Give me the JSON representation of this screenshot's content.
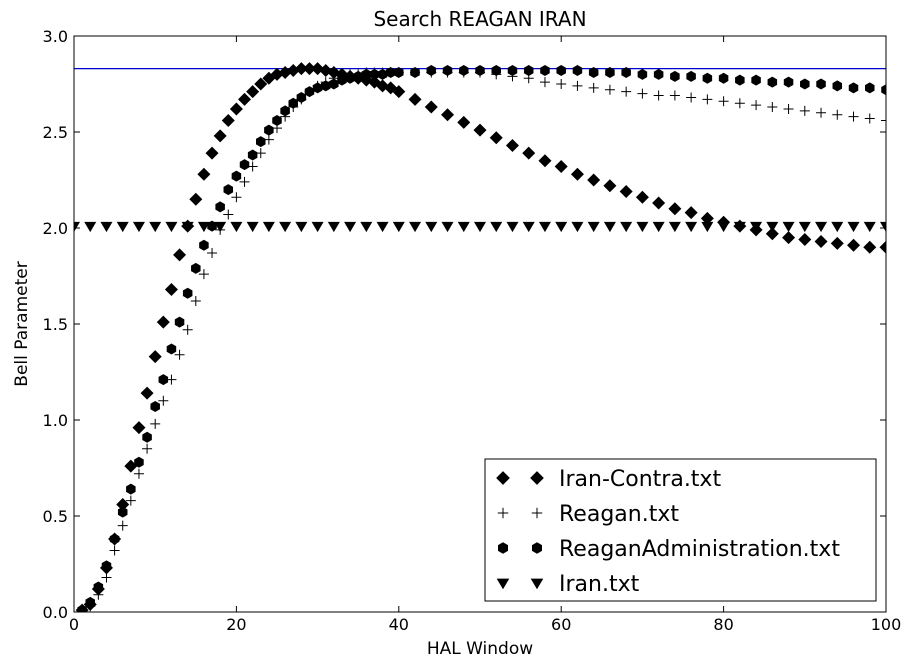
{
  "chart_data": {
    "type": "scatter",
    "title": "Search REAGAN IRAN",
    "xlabel": "HAL Window",
    "ylabel": "Bell Parameter",
    "xlim": [
      0,
      100
    ],
    "ylim": [
      0,
      3.0
    ],
    "xticks": [
      "0",
      "20",
      "40",
      "60",
      "80",
      "100"
    ],
    "yticks": [
      "0.0",
      "0.5",
      "1.0",
      "1.5",
      "2.0",
      "2.5",
      "3.0"
    ],
    "grid": false,
    "legend_position": "lower-right",
    "reference_line": {
      "y": 2.83,
      "color": "#0000cc"
    },
    "series": [
      {
        "name": "Iran-Contra.txt",
        "marker": "diamond",
        "x": [
          1,
          2,
          3,
          4,
          5,
          6,
          7,
          8,
          9,
          10,
          11,
          12,
          13,
          14,
          15,
          16,
          17,
          18,
          19,
          20,
          21,
          22,
          23,
          24,
          25,
          26,
          27,
          28,
          29,
          30,
          31,
          32,
          33,
          34,
          35,
          36,
          37,
          38,
          39,
          40,
          42,
          44,
          46,
          48,
          50,
          52,
          54,
          56,
          58,
          60,
          62,
          64,
          66,
          68,
          70,
          72,
          74,
          76,
          78,
          80,
          82,
          84,
          86,
          88,
          90,
          92,
          94,
          96,
          98,
          100
        ],
        "y": [
          0.01,
          0.04,
          0.12,
          0.23,
          0.38,
          0.56,
          0.76,
          0.96,
          1.14,
          1.33,
          1.51,
          1.68,
          1.86,
          2.01,
          2.15,
          2.28,
          2.39,
          2.48,
          2.56,
          2.62,
          2.67,
          2.71,
          2.75,
          2.78,
          2.8,
          2.81,
          2.82,
          2.83,
          2.83,
          2.83,
          2.82,
          2.81,
          2.8,
          2.79,
          2.78,
          2.77,
          2.76,
          2.74,
          2.73,
          2.71,
          2.67,
          2.63,
          2.59,
          2.55,
          2.51,
          2.47,
          2.43,
          2.39,
          2.35,
          2.32,
          2.28,
          2.25,
          2.22,
          2.19,
          2.16,
          2.13,
          2.1,
          2.08,
          2.05,
          2.03,
          2.01,
          1.99,
          1.97,
          1.95,
          1.94,
          1.93,
          1.92,
          1.91,
          1.9,
          1.9
        ]
      },
      {
        "name": "Reagan.txt",
        "marker": "plus",
        "x": [
          1,
          2,
          3,
          4,
          5,
          6,
          7,
          8,
          9,
          10,
          11,
          12,
          13,
          14,
          15,
          16,
          17,
          18,
          19,
          20,
          21,
          22,
          23,
          24,
          25,
          26,
          27,
          28,
          29,
          30,
          31,
          32,
          33,
          34,
          35,
          36,
          37,
          38,
          39,
          40,
          42,
          44,
          46,
          48,
          50,
          52,
          54,
          56,
          58,
          60,
          62,
          64,
          66,
          68,
          70,
          72,
          74,
          76,
          78,
          80,
          82,
          84,
          86,
          88,
          90,
          92,
          94,
          96,
          98,
          100
        ],
        "y": [
          0.01,
          0.03,
          0.09,
          0.18,
          0.32,
          0.45,
          0.58,
          0.72,
          0.85,
          0.98,
          1.1,
          1.21,
          1.34,
          1.47,
          1.62,
          1.76,
          1.87,
          1.99,
          2.07,
          2.16,
          2.24,
          2.32,
          2.39,
          2.46,
          2.52,
          2.58,
          2.63,
          2.67,
          2.71,
          2.74,
          2.76,
          2.78,
          2.79,
          2.8,
          2.8,
          2.81,
          2.81,
          2.81,
          2.81,
          2.81,
          2.81,
          2.81,
          2.81,
          2.81,
          2.81,
          2.8,
          2.79,
          2.78,
          2.76,
          2.75,
          2.74,
          2.73,
          2.72,
          2.71,
          2.7,
          2.69,
          2.69,
          2.68,
          2.67,
          2.66,
          2.65,
          2.64,
          2.63,
          2.62,
          2.61,
          2.6,
          2.59,
          2.58,
          2.57,
          2.56
        ]
      },
      {
        "name": "ReaganAdministration.txt",
        "marker": "hexagon",
        "x": [
          1,
          2,
          3,
          4,
          5,
          6,
          7,
          8,
          9,
          10,
          11,
          12,
          13,
          14,
          15,
          16,
          17,
          18,
          19,
          20,
          21,
          22,
          23,
          24,
          25,
          26,
          27,
          28,
          29,
          30,
          31,
          32,
          33,
          34,
          35,
          36,
          37,
          38,
          39,
          40,
          42,
          44,
          46,
          48,
          50,
          52,
          54,
          56,
          58,
          60,
          62,
          64,
          66,
          68,
          70,
          72,
          74,
          76,
          78,
          80,
          82,
          84,
          86,
          88,
          90,
          92,
          94,
          96,
          98,
          100
        ],
        "y": [
          0.01,
          0.05,
          0.13,
          0.24,
          0.38,
          0.52,
          0.64,
          0.78,
          0.91,
          1.07,
          1.21,
          1.37,
          1.51,
          1.66,
          1.79,
          1.91,
          2.01,
          2.11,
          2.2,
          2.27,
          2.33,
          2.38,
          2.45,
          2.51,
          2.56,
          2.61,
          2.65,
          2.68,
          2.71,
          2.73,
          2.74,
          2.75,
          2.77,
          2.78,
          2.79,
          2.8,
          2.8,
          2.8,
          2.81,
          2.81,
          2.81,
          2.82,
          2.82,
          2.82,
          2.82,
          2.82,
          2.82,
          2.82,
          2.82,
          2.82,
          2.82,
          2.81,
          2.81,
          2.81,
          2.8,
          2.8,
          2.79,
          2.79,
          2.78,
          2.78,
          2.77,
          2.77,
          2.76,
          2.76,
          2.75,
          2.75,
          2.74,
          2.73,
          2.73,
          2.72
        ]
      },
      {
        "name": "Iran.txt",
        "marker": "triangle-down",
        "x": [
          0,
          2,
          4,
          6,
          8,
          10,
          12,
          14,
          16,
          18,
          20,
          22,
          24,
          26,
          28,
          30,
          32,
          34,
          36,
          38,
          40,
          42,
          44,
          46,
          48,
          50,
          52,
          54,
          56,
          58,
          60,
          62,
          64,
          66,
          68,
          70,
          72,
          74,
          76,
          78,
          80,
          82,
          84,
          86,
          88,
          90,
          92,
          94,
          96,
          98,
          100
        ],
        "y": [
          2.01,
          2.01,
          2.01,
          2.01,
          2.01,
          2.01,
          2.01,
          2.01,
          2.01,
          2.01,
          2.01,
          2.01,
          2.01,
          2.01,
          2.01,
          2.01,
          2.01,
          2.01,
          2.01,
          2.01,
          2.01,
          2.01,
          2.01,
          2.01,
          2.01,
          2.01,
          2.01,
          2.01,
          2.01,
          2.01,
          2.01,
          2.01,
          2.01,
          2.01,
          2.01,
          2.01,
          2.01,
          2.01,
          2.01,
          2.01,
          2.01,
          2.01,
          2.01,
          2.01,
          2.01,
          2.01,
          2.01,
          2.01,
          2.01,
          2.01,
          2.01
        ]
      }
    ]
  }
}
